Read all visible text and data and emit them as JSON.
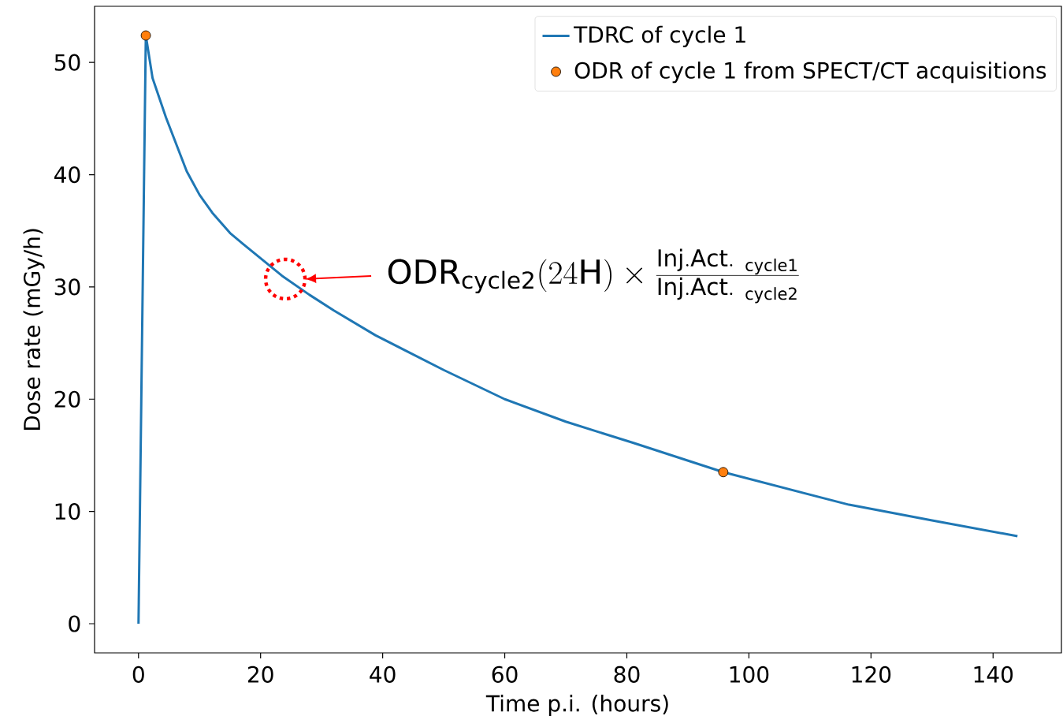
{
  "chart_data": {
    "type": "line",
    "xlabel": "Time p.i. (hours)",
    "ylabel": "Dose rate (mGy/h)",
    "xlim": [
      -7.2,
      151.2
    ],
    "ylim": [
      -2.6,
      55
    ],
    "xticks": [
      0,
      20,
      40,
      60,
      80,
      100,
      120,
      140
    ],
    "yticks": [
      0,
      10,
      20,
      30,
      40,
      50
    ],
    "legend": "top right",
    "series": [
      {
        "name": "TDRC of cycle 1",
        "color": "#1f77b4",
        "marker": "none",
        "x": [
          0,
          1.2,
          2.3,
          4.5,
          7.9,
          10,
          12.1,
          15,
          17.2,
          23.5,
          28,
          32,
          38.8,
          50,
          60,
          70,
          81.1,
          95.8,
          116.4,
          130,
          144
        ],
        "values": [
          0,
          52.4,
          48.6,
          45.1,
          40.3,
          38.2,
          36.6,
          34.8,
          33.8,
          31.0,
          29.3,
          27.9,
          25.7,
          22.6,
          20.0,
          18.0,
          16.1,
          13.5,
          10.6,
          9.2,
          7.8
        ]
      },
      {
        "name": "ODR of cycle 1 from SPECT/CT acquisitions",
        "type": "scatter",
        "color": "#ff7f0e",
        "marker": "circle",
        "x": [
          1.2,
          95.8
        ],
        "values": [
          52.4,
          13.5
        ]
      }
    ],
    "annotations": [
      "\\mathrm{ODR}_{\\mathrm{cycle2}}(24\\mathrm{H}) \\times \\frac{\\mathrm{Inj.Act.}\\ _{\\mathrm{cycle1}}}{\\mathrm{Inj.Act.}\\ _{\\mathrm{cycle2}}}"
    ]
  }
}
